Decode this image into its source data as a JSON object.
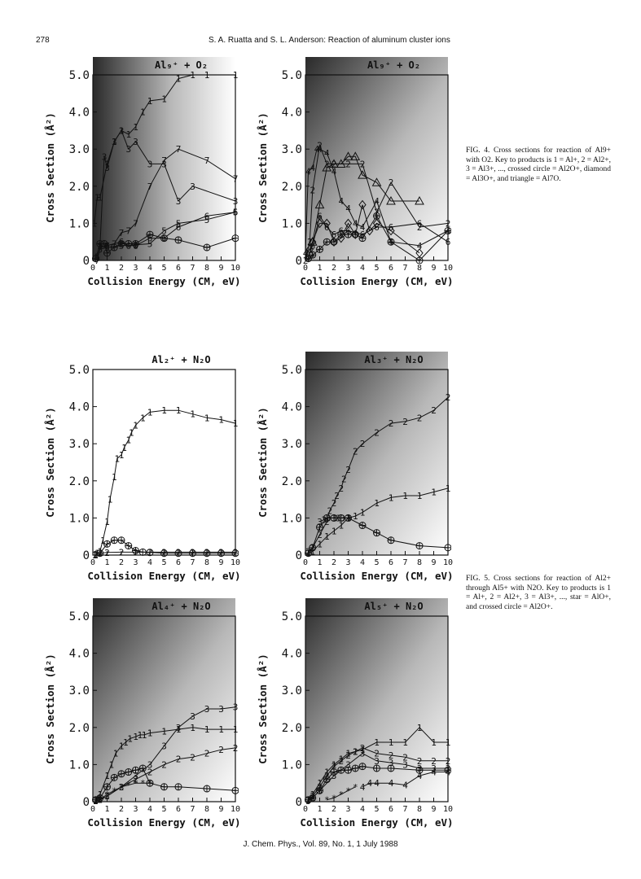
{
  "header": {
    "page_number": "278",
    "running_title": "S. A. Ruatta and S. L. Anderson: Reaction of aluminum cluster ions"
  },
  "captions": {
    "fig4": "FIG. 4. Cross sections for reaction of Al9+ with O2. Key to products is 1 = Al+, 2 = Al2+, 3 = Al3+, ..., crossed circle = Al2O+, diamond = Al3O+, and triangle = Al7O.",
    "fig5": "FIG. 5. Cross sections for reaction of Al2+ through Al5+ with N2O. Key to products is 1 = Al+, 2 = Al2+, 3 = Al3+, ..., star = AlO+, and crossed circle = Al2O+."
  },
  "footer": "J. Chem. Phys., Vol. 89, No. 1, 1 July 1988",
  "chart_data": [
    {
      "type": "line",
      "title": "Al9+ + O2",
      "xlabel": "Collision Energy (CM, eV)",
      "ylabel": "Cross Section (Å²)",
      "xlim": [
        0,
        10
      ],
      "ylim": [
        0,
        5
      ],
      "x_ticks": [
        "0",
        "1",
        "2",
        "3",
        "4",
        "5",
        "6",
        "7",
        "8",
        "9",
        "10"
      ],
      "y_ticks": [
        "0",
        "1.0",
        "2.0",
        "3.0",
        "4.0",
        "5.0"
      ],
      "grid": false,
      "series": [
        {
          "marker": "1",
          "x": [
            0.1,
            0.3,
            0.5,
            1,
            1.5,
            2,
            2.5,
            3,
            3.5,
            4,
            5,
            6,
            7,
            8,
            10
          ],
          "y": [
            1.0,
            1.7,
            1.7,
            2.6,
            3.2,
            3.5,
            3.4,
            3.6,
            4.0,
            4.3,
            4.35,
            4.9,
            5.0,
            5.0,
            5.0
          ]
        },
        {
          "marker": "3",
          "x": [
            0.5,
            0.8,
            1,
            1.5,
            2,
            2.5,
            3,
            4,
            5,
            6,
            7,
            10
          ],
          "y": [
            0.4,
            2.8,
            2.5,
            3.2,
            3.5,
            3.0,
            3.2,
            2.6,
            2.6,
            1.6,
            2.0,
            1.6
          ]
        },
        {
          "marker": "7",
          "x": [
            0.3,
            0.5,
            1,
            1.5,
            2,
            2.5,
            3,
            4,
            5,
            6,
            8,
            10
          ],
          "y": [
            0,
            0.35,
            0.4,
            0.45,
            0.75,
            0.8,
            1.0,
            2.0,
            2.7,
            3.0,
            2.7,
            2.2
          ]
        },
        {
          "marker": "5",
          "x": [
            0.3,
            0.5,
            1,
            2,
            3,
            4,
            5,
            6,
            8,
            10
          ],
          "y": [
            0.1,
            0.3,
            0.35,
            0.4,
            0.42,
            0.45,
            0.8,
            1.0,
            1.1,
            1.3
          ]
        },
        {
          "marker": "6",
          "x": [
            1,
            2,
            2.5,
            3,
            4,
            5,
            6,
            8,
            10
          ],
          "y": [
            0.4,
            0.5,
            0.4,
            0.4,
            0.6,
            0.6,
            0.9,
            1.2,
            1.3
          ]
        },
        {
          "marker": "crossed-circle",
          "x": [
            0.2,
            0.5,
            0.8,
            1,
            1.5,
            2,
            2.5,
            3,
            4,
            5,
            6,
            8,
            10
          ],
          "y": [
            0.05,
            0.45,
            0.45,
            0.2,
            0.35,
            0.45,
            0.45,
            0.45,
            0.7,
            0.6,
            0.55,
            0.35,
            0.6
          ]
        }
      ]
    },
    {
      "type": "line",
      "title": "Al9+ + O2",
      "xlabel": "Collision Energy (CM, eV)",
      "ylabel": "Cross Section (Å²)",
      "xlim": [
        0,
        10
      ],
      "ylim": [
        0,
        5
      ],
      "x_ticks": [
        "0",
        "1",
        "2",
        "3",
        "4",
        "5",
        "6",
        "7",
        "8",
        "9",
        "10"
      ],
      "y_ticks": [
        "0",
        "1.0",
        "2.0",
        "3.0",
        "4.0",
        "5.0"
      ],
      "grid": false,
      "series": [
        {
          "marker": "4",
          "x": [
            0,
            0.2,
            0.5,
            0.8,
            1,
            1.5,
            2,
            2.5,
            3,
            3.5,
            4,
            5,
            6,
            8,
            10
          ],
          "y": [
            0.2,
            2.4,
            2.5,
            3.0,
            3.0,
            2.9,
            2.4,
            1.6,
            1.4,
            1.0,
            0.9,
            1.6,
            0.5,
            0.4,
            0.8
          ]
        },
        {
          "marker": "2",
          "x": [
            0,
            0.3,
            0.5,
            1,
            1.5,
            2,
            3,
            4,
            5,
            6,
            8,
            10
          ],
          "y": [
            0,
            0.5,
            1.9,
            3.1,
            2.6,
            2.6,
            2.6,
            2.6,
            1.3,
            2.1,
            0.9,
            1.0
          ]
        },
        {
          "marker": "triangle",
          "x": [
            0.3,
            0.5,
            1,
            1.5,
            2,
            2.5,
            3,
            3.5,
            4,
            5,
            6,
            8
          ],
          "y": [
            0.2,
            0.5,
            1.5,
            2.5,
            2.6,
            2.6,
            2.8,
            2.8,
            2.3,
            2.1,
            1.6,
            1.6
          ]
        },
        {
          "marker": "6",
          "x": [
            0.2,
            0.5,
            1,
            1.5,
            2,
            2.5,
            3,
            4,
            5,
            6,
            8,
            10
          ],
          "y": [
            0.1,
            0.4,
            1.2,
            0.9,
            0.7,
            0.8,
            0.8,
            0.7,
            0.9,
            0.9,
            1.0,
            0.5
          ]
        },
        {
          "marker": "diamond",
          "x": [
            0.3,
            0.5,
            1,
            1.5,
            2,
            2.5,
            3,
            3.5,
            4,
            4.5,
            5,
            6,
            8
          ],
          "y": [
            0.3,
            0.5,
            1.0,
            1.0,
            0.5,
            0.6,
            1.0,
            0.7,
            1.5,
            0.8,
            1.0,
            0.8,
            0.2
          ]
        },
        {
          "marker": "crossed-circle",
          "x": [
            0.2,
            0.5,
            1,
            1.5,
            2,
            2.5,
            3,
            3.5,
            4,
            5,
            6,
            8,
            10
          ],
          "y": [
            0.05,
            0.15,
            0.3,
            0.5,
            0.5,
            0.7,
            0.7,
            0.7,
            0.6,
            1.2,
            0.5,
            0.0,
            0.8
          ]
        }
      ]
    },
    {
      "type": "line",
      "title": "Al2+ + N2O",
      "xlabel": "Collision Energy (CM, eV)",
      "ylabel": "Cross Section (Å²)",
      "xlim": [
        0,
        10
      ],
      "ylim": [
        0,
        5
      ],
      "x_ticks": [
        "0",
        "1",
        "2",
        "3",
        "4",
        "5",
        "6",
        "7",
        "8",
        "9",
        "10"
      ],
      "y_ticks": [
        "0",
        "1.0",
        "2.0",
        "3.0",
        "4.0",
        "5.0"
      ],
      "grid": false,
      "series": [
        {
          "marker": "1",
          "x": [
            0.1,
            0.2,
            0.3,
            0.5,
            0.7,
            1,
            1.2,
            1.5,
            1.7,
            2,
            2.2,
            2.5,
            2.7,
            3,
            3.5,
            4,
            5,
            6,
            7,
            8,
            9,
            10
          ],
          "y": [
            0,
            0,
            0.05,
            0.1,
            0.4,
            0.9,
            1.5,
            2.1,
            2.6,
            2.7,
            2.9,
            3.1,
            3.3,
            3.5,
            3.7,
            3.85,
            3.9,
            3.9,
            3.8,
            3.7,
            3.65,
            3.55
          ]
        },
        {
          "marker": "crossed-circle",
          "x": [
            0.5,
            1,
            1.5,
            2,
            2.5,
            3,
            3.5,
            4,
            5,
            6,
            7,
            8,
            9,
            10
          ],
          "y": [
            0.05,
            0.3,
            0.4,
            0.4,
            0.25,
            0.12,
            0.08,
            0.07,
            0.05,
            0.05,
            0.05,
            0.05,
            0.05,
            0.05
          ]
        },
        {
          "marker": "2",
          "x": [
            0.2,
            0.5,
            1,
            2,
            3,
            4,
            5,
            6,
            7,
            8,
            9,
            10
          ],
          "y": [
            0.02,
            0.05,
            0.07,
            0.08,
            0.08,
            0.08,
            0.08,
            0.08,
            0.08,
            0.08,
            0.08,
            0.08
          ]
        }
      ]
    },
    {
      "type": "line",
      "title": "Al3+ + N2O",
      "xlabel": "Collision Energy (CM, eV)",
      "ylabel": "Cross Section (Å²)",
      "xlim": [
        0,
        10
      ],
      "ylim": [
        0,
        5
      ],
      "x_ticks": [
        "0",
        "1",
        "2",
        "3",
        "4",
        "5",
        "6",
        "7",
        "8",
        "9",
        "10"
      ],
      "y_ticks": [
        "0",
        "1.0",
        "2.0",
        "3.0",
        "4.0",
        "5.0"
      ],
      "grid": false,
      "series": [
        {
          "marker": "2",
          "x": [
            0.2,
            0.5,
            1,
            1.5,
            1.7,
            2,
            2.2,
            2.5,
            2.7,
            3,
            3.5,
            4,
            5,
            6,
            7,
            8,
            9,
            10
          ],
          "y": [
            0.1,
            0.2,
            0.55,
            0.9,
            1.2,
            1.4,
            1.6,
            1.8,
            2.05,
            2.3,
            2.8,
            3.0,
            3.3,
            3.55,
            3.6,
            3.7,
            3.9,
            4.25
          ]
        },
        {
          "marker": "1",
          "x": [
            0.2,
            0.5,
            1,
            1.5,
            2,
            2.5,
            3,
            3.5,
            4,
            5,
            6,
            7,
            8,
            9,
            10
          ],
          "y": [
            0.05,
            0.1,
            0.3,
            0.5,
            0.65,
            0.8,
            1.0,
            1.05,
            1.15,
            1.4,
            1.55,
            1.6,
            1.6,
            1.7,
            1.8
          ]
        },
        {
          "marker": "3",
          "x": [
            1,
            1.3,
            1.6,
            2,
            2.3,
            2.6,
            3
          ],
          "y": [
            0.9,
            0.95,
            1.0,
            1.0,
            1.0,
            1.0,
            1.0
          ]
        },
        {
          "marker": "crossed-circle",
          "x": [
            0.2,
            0.5,
            1,
            1.5,
            2,
            2.5,
            3,
            4,
            5,
            6,
            8,
            10
          ],
          "y": [
            0.05,
            0.2,
            0.75,
            1.0,
            1.0,
            1.0,
            1.0,
            0.8,
            0.6,
            0.4,
            0.25,
            0.2
          ]
        }
      ]
    },
    {
      "type": "line",
      "title": "Al4+ + N2O",
      "xlabel": "Collision Energy (CM, eV)",
      "ylabel": "Cross Section (Å²)",
      "xlim": [
        0,
        10
      ],
      "ylim": [
        0,
        5
      ],
      "x_ticks": [
        "0",
        "1",
        "2",
        "3",
        "4",
        "5",
        "6",
        "7",
        "8",
        "9",
        "10"
      ],
      "y_ticks": [
        "0",
        "1.0",
        "2.0",
        "3.0",
        "4.0",
        "5.0"
      ],
      "grid": false,
      "series": [
        {
          "marker": "1",
          "x": [
            0.2,
            0.5,
            1,
            1.3,
            1.6,
            2,
            2.3,
            2.6,
            3,
            3.3,
            3.6,
            4,
            5,
            6,
            7,
            8,
            9,
            10
          ],
          "y": [
            0.05,
            0.2,
            0.7,
            1.0,
            1.3,
            1.5,
            1.6,
            1.7,
            1.75,
            1.8,
            1.8,
            1.85,
            1.9,
            1.95,
            2.0,
            1.95,
            1.95,
            1.95
          ]
        },
        {
          "marker": "3",
          "x": [
            0.2,
            0.5,
            1,
            2,
            3,
            4,
            5,
            6,
            7,
            8,
            9,
            10
          ],
          "y": [
            0.02,
            0.05,
            0.15,
            0.4,
            0.7,
            1.0,
            1.5,
            2.0,
            2.3,
            2.5,
            2.5,
            2.55
          ]
        },
        {
          "marker": "2",
          "x": [
            0.2,
            0.5,
            1,
            2,
            3,
            4,
            5,
            6,
            7,
            8,
            9,
            10
          ],
          "y": [
            0.02,
            0.05,
            0.15,
            0.4,
            0.6,
            0.8,
            1.0,
            1.15,
            1.2,
            1.3,
            1.4,
            1.45
          ]
        },
        {
          "marker": "crossed-circle",
          "x": [
            0.2,
            0.5,
            1,
            1.5,
            2,
            2.5,
            3,
            3.5,
            4,
            5,
            6,
            8,
            10
          ],
          "y": [
            0.05,
            0.1,
            0.4,
            0.65,
            0.75,
            0.8,
            0.85,
            0.9,
            0.5,
            0.4,
            0.4,
            0.35,
            0.3
          ]
        },
        {
          "marker": "star",
          "x": [
            0.5,
            1,
            1.5,
            2,
            2.5,
            3,
            3.5,
            4
          ],
          "y": [
            0.05,
            0.2,
            0.3,
            0.4,
            0.45,
            0.5,
            0.5,
            0.5
          ]
        }
      ]
    },
    {
      "type": "line",
      "title": "Al5+ + N2O",
      "xlabel": "Collision Energy (CM, eV)",
      "ylabel": "Cross Section (Å²)",
      "xlim": [
        0,
        10
      ],
      "ylim": [
        0,
        5
      ],
      "x_ticks": [
        "0",
        "1",
        "2",
        "3",
        "4",
        "5",
        "6",
        "7",
        "8",
        "9",
        "10"
      ],
      "y_ticks": [
        "0",
        "1.0",
        "2.0",
        "3.0",
        "4.0",
        "5.0"
      ],
      "grid": false,
      "series": [
        {
          "marker": "1",
          "x": [
            0.2,
            0.5,
            1,
            1.5,
            2,
            2.5,
            3,
            3.5,
            4,
            5,
            6,
            7,
            8,
            9,
            10
          ],
          "y": [
            0.05,
            0.2,
            0.5,
            0.8,
            1.0,
            1.15,
            1.3,
            1.35,
            1.4,
            1.6,
            1.6,
            1.6,
            2.0,
            1.6,
            1.6
          ]
        },
        {
          "marker": "2",
          "x": [
            0.2,
            0.5,
            1,
            1.5,
            2,
            2.5,
            3,
            3.5,
            4,
            5,
            6,
            7,
            8,
            9,
            10
          ],
          "y": [
            0.05,
            0.15,
            0.4,
            0.7,
            0.95,
            1.1,
            1.25,
            1.35,
            1.45,
            1.3,
            1.25,
            1.2,
            1.1,
            1.1,
            1.1
          ]
        },
        {
          "marker": "crossed-circle",
          "x": [
            0.2,
            0.5,
            1,
            1.5,
            2,
            2.5,
            3,
            3.5,
            4,
            5,
            6,
            8,
            10
          ],
          "y": [
            0.05,
            0.1,
            0.3,
            0.6,
            0.8,
            0.85,
            0.85,
            0.9,
            0.95,
            0.9,
            0.9,
            0.85,
            0.85
          ]
        },
        {
          "marker": "3",
          "x": [
            0.2,
            0.5,
            1,
            2,
            3,
            4,
            5,
            6,
            7,
            8,
            9,
            10
          ],
          "y": [
            0.02,
            0.1,
            0.3,
            0.7,
            1.0,
            1.3,
            1.1,
            1.05,
            1.0,
            0.9,
            0.9,
            0.9
          ]
        },
        {
          "marker": "4",
          "x": [
            4,
            4.5,
            5,
            6,
            7,
            8,
            9,
            10
          ],
          "y": [
            0.4,
            0.5,
            0.5,
            0.5,
            0.45,
            0.7,
            0.8,
            0.8
          ]
        },
        {
          "marker": "star",
          "x": [
            1.5,
            2,
            2.5,
            3,
            3.5
          ],
          "y": [
            0.05,
            0.1,
            0.2,
            0.3,
            0.4
          ]
        }
      ]
    }
  ]
}
